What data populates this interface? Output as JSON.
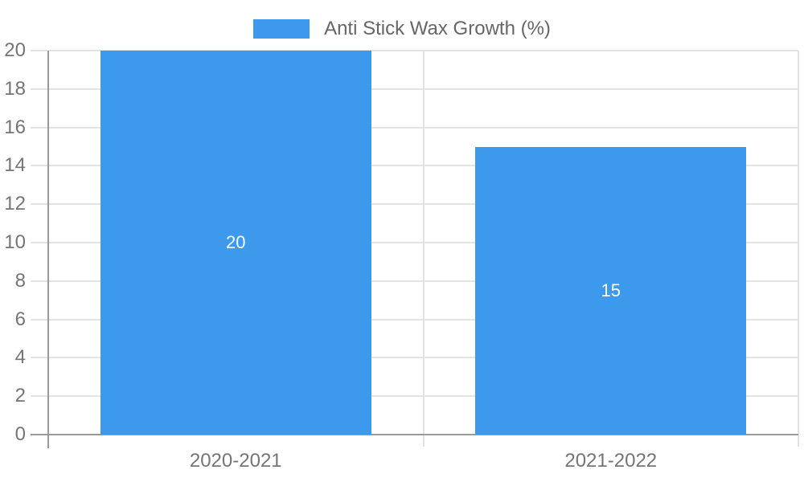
{
  "legend": {
    "label": "Anti Stick Wax Growth (%)",
    "position": "top"
  },
  "chart_data": {
    "type": "bar",
    "title": "",
    "xlabel": "",
    "ylabel": "",
    "categories": [
      "2020-2021",
      "2021-2022"
    ],
    "series": [
      {
        "name": "Anti Stick Wax Growth (%)",
        "values": [
          20,
          15
        ]
      }
    ],
    "data_labels": [
      "20",
      "15"
    ],
    "ylim": [
      0,
      20
    ],
    "yticks": [
      0,
      2,
      4,
      6,
      8,
      10,
      12,
      14,
      16,
      18,
      20
    ],
    "grid": true,
    "legend_position": "top"
  },
  "colors": {
    "bar": "#3C99EC",
    "grid": "#e3e3e3",
    "axis": "#9a9a9a",
    "tick_label": "#757575",
    "legend_text": "#666666",
    "data_label": "#ffffff",
    "background": "#ffffff"
  }
}
